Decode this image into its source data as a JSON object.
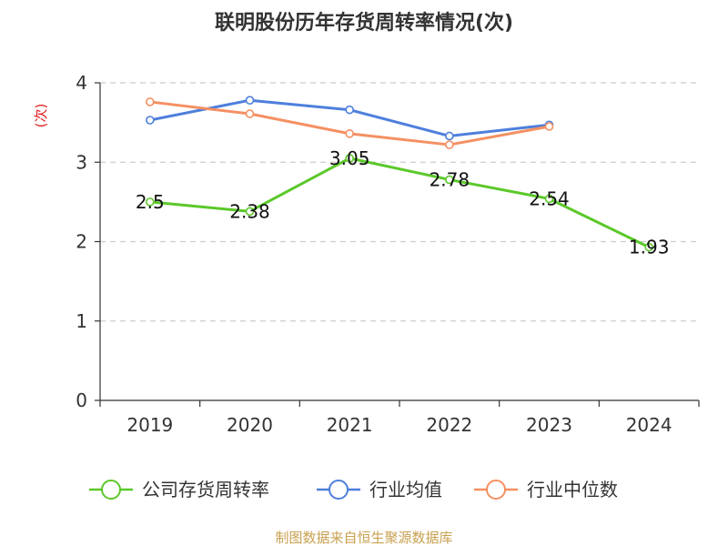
{
  "chart_data": {
    "type": "line",
    "title": "联明股份历年存货周转率情况(次)",
    "ylabel": "(次)",
    "xlabel": "",
    "categories": [
      "2019",
      "2020",
      "2021",
      "2022",
      "2023",
      "2024"
    ],
    "ylim": [
      0,
      4
    ],
    "yticks": [
      0,
      1,
      2,
      3,
      4
    ],
    "grid": true,
    "legend_position": "bottom",
    "series": [
      {
        "name": "公司存货周转率",
        "color": "#5cc82a",
        "values": [
          2.5,
          2.38,
          3.05,
          2.78,
          2.54,
          1.93
        ],
        "labels": [
          "2.5",
          "2.38",
          "3.05",
          "2.78",
          "2.54",
          "1.93"
        ]
      },
      {
        "name": "行业均值",
        "color": "#4e7fdc",
        "values": [
          3.53,
          3.78,
          3.66,
          3.33,
          3.47,
          null
        ]
      },
      {
        "name": "行业中位数",
        "color": "#f59062",
        "values": [
          3.76,
          3.61,
          3.36,
          3.22,
          3.45,
          null
        ]
      }
    ]
  },
  "source": "制图数据来自恒生聚源数据库"
}
